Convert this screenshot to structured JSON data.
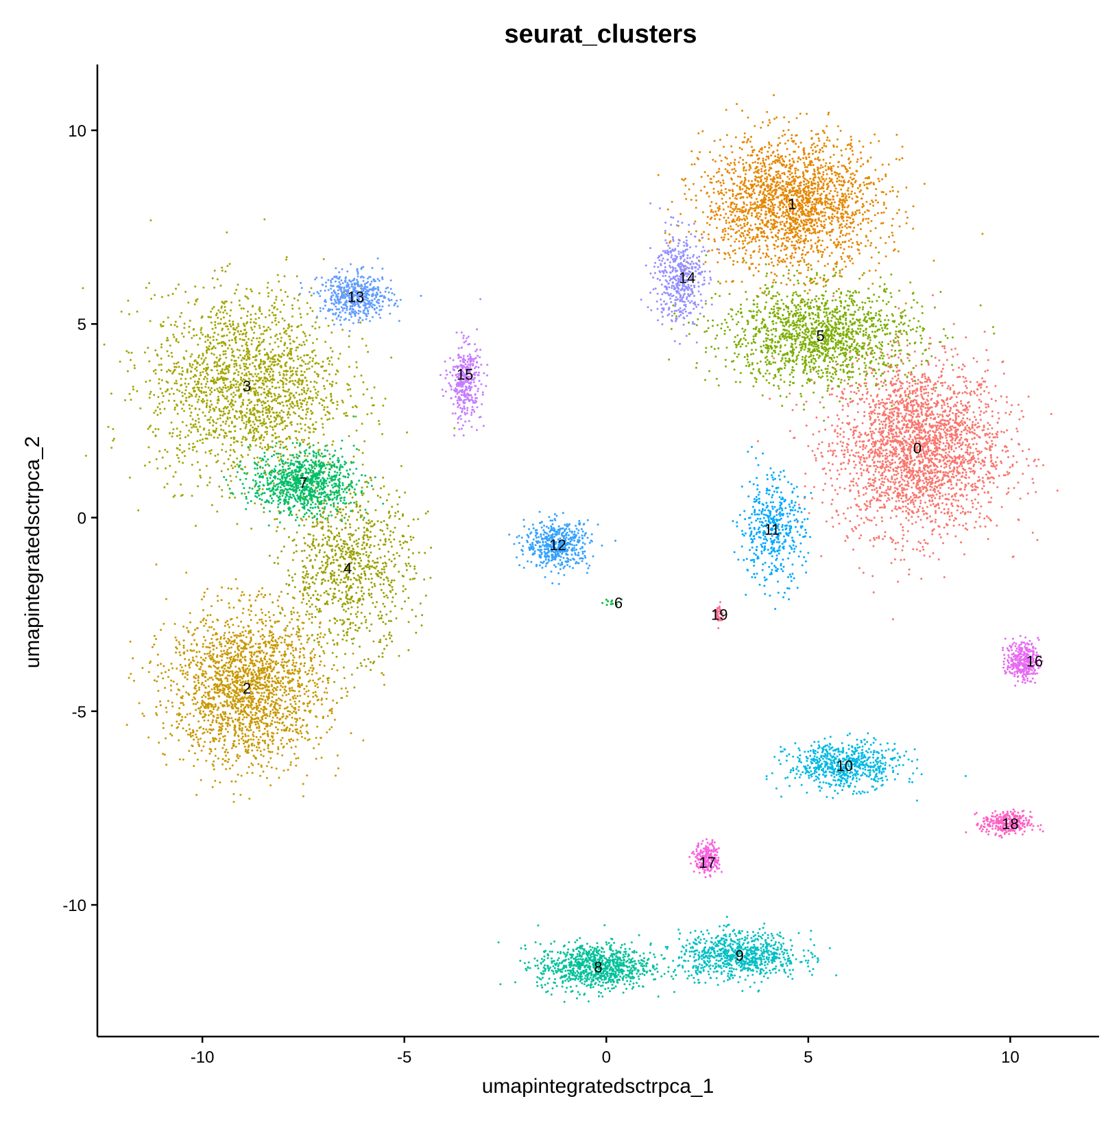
{
  "chart_data": {
    "type": "scatter",
    "title": "seurat_clusters",
    "xlabel": "umapintegratedsctrpca_1",
    "ylabel": "umapintegratedsctrpca_2",
    "xlim": [
      -12.6,
      12.2
    ],
    "ylim": [
      -13.4,
      11.7
    ],
    "x_ticks": [
      -10,
      -5,
      0,
      5,
      10
    ],
    "y_ticks": [
      -10,
      -5,
      0,
      5,
      10
    ],
    "x_tick_labels": [
      "-10",
      "-5",
      "0",
      "5",
      "10"
    ],
    "y_tick_labels": [
      "-10",
      "-5",
      "0",
      "5",
      "10"
    ],
    "grid": false,
    "legend": "none",
    "point_size": "small",
    "series": [
      {
        "name": "0",
        "color": "#F8766D",
        "center": [
          7.7,
          1.8
        ],
        "spread": [
          2.1,
          2.2
        ],
        "n": 2600
      },
      {
        "name": "1",
        "color": "#E58700",
        "center": [
          4.6,
          8.1
        ],
        "spread": [
          2.2,
          1.7
        ],
        "n": 2100
      },
      {
        "name": "2",
        "color": "#C99800",
        "center": [
          -8.9,
          -4.4
        ],
        "spread": [
          1.9,
          2.0
        ],
        "n": 2000
      },
      {
        "name": "3",
        "color": "#A3A500",
        "center": [
          -8.9,
          3.4
        ],
        "spread": [
          2.4,
          2.4
        ],
        "n": 1900
      },
      {
        "name": "4",
        "color": "#9AA000",
        "center": [
          -6.4,
          -1.3
        ],
        "spread": [
          1.6,
          2.1
        ],
        "n": 900
      },
      {
        "name": "5",
        "color": "#7CAE00",
        "center": [
          5.3,
          4.7
        ],
        "spread": [
          2.4,
          1.3
        ],
        "n": 1500
      },
      {
        "name": "6",
        "color": "#00BA38",
        "center": [
          0.1,
          -2.2
        ],
        "spread": [
          0.2,
          0.2
        ],
        "n": 10
      },
      {
        "name": "7",
        "color": "#00BE67",
        "center": [
          -7.5,
          0.9
        ],
        "spread": [
          1.3,
          0.8
        ],
        "n": 900
      },
      {
        "name": "8",
        "color": "#00C19A",
        "center": [
          -0.3,
          -11.6
        ],
        "spread": [
          1.4,
          0.6
        ],
        "n": 900
      },
      {
        "name": "9",
        "color": "#00BFC4",
        "center": [
          3.3,
          -11.3
        ],
        "spread": [
          1.5,
          0.6
        ],
        "n": 800
      },
      {
        "name": "10",
        "color": "#00B9E3",
        "center": [
          5.9,
          -6.4
        ],
        "spread": [
          1.4,
          0.6
        ],
        "n": 650
      },
      {
        "name": "11",
        "color": "#00A9FF",
        "center": [
          4.1,
          -0.3
        ],
        "spread": [
          0.8,
          1.4
        ],
        "n": 450
      },
      {
        "name": "12",
        "color": "#35A2FF",
        "center": [
          -1.2,
          -0.7
        ],
        "spread": [
          0.8,
          0.6
        ],
        "n": 500
      },
      {
        "name": "13",
        "color": "#619CFF",
        "center": [
          -6.2,
          5.7
        ],
        "spread": [
          0.9,
          0.6
        ],
        "n": 500
      },
      {
        "name": "14",
        "color": "#9590FF",
        "center": [
          1.8,
          6.2
        ],
        "spread": [
          0.6,
          1.2
        ],
        "n": 450
      },
      {
        "name": "15",
        "color": "#C77CFF",
        "center": [
          -3.5,
          3.5
        ],
        "spread": [
          0.4,
          1.0
        ],
        "n": 350
      },
      {
        "name": "16",
        "color": "#E76BF3",
        "center": [
          10.3,
          -3.7
        ],
        "spread": [
          0.4,
          0.5
        ],
        "n": 330
      },
      {
        "name": "17",
        "color": "#F863DF",
        "center": [
          2.5,
          -8.8
        ],
        "spread": [
          0.3,
          0.4
        ],
        "n": 230
      },
      {
        "name": "18",
        "color": "#FF61C3",
        "center": [
          9.9,
          -7.9
        ],
        "spread": [
          0.6,
          0.3
        ],
        "n": 300
      },
      {
        "name": "19",
        "color": "#FF6C91",
        "center": [
          2.8,
          -2.5
        ],
        "spread": [
          0.1,
          0.3
        ],
        "n": 40
      }
    ],
    "cluster_labels": [
      {
        "text": "0",
        "x": 7.7,
        "y": 1.8
      },
      {
        "text": "1",
        "x": 4.6,
        "y": 8.1
      },
      {
        "text": "2",
        "x": -8.9,
        "y": -4.4
      },
      {
        "text": "3",
        "x": -8.9,
        "y": 3.4
      },
      {
        "text": "4",
        "x": -6.4,
        "y": -1.3
      },
      {
        "text": "5",
        "x": 5.3,
        "y": 4.7
      },
      {
        "text": "6",
        "x": 0.3,
        "y": -2.2
      },
      {
        "text": "7",
        "x": -7.5,
        "y": 0.9
      },
      {
        "text": "8",
        "x": -0.2,
        "y": -11.6
      },
      {
        "text": "9",
        "x": 3.3,
        "y": -11.3
      },
      {
        "text": "10",
        "x": 5.9,
        "y": -6.4
      },
      {
        "text": "11",
        "x": 4.1,
        "y": -0.3
      },
      {
        "text": "12",
        "x": -1.2,
        "y": -0.7
      },
      {
        "text": "13",
        "x": -6.2,
        "y": 5.7
      },
      {
        "text": "14",
        "x": 2.0,
        "y": 6.2
      },
      {
        "text": "15",
        "x": -3.5,
        "y": 3.7
      },
      {
        "text": "16",
        "x": 10.6,
        "y": -3.7
      },
      {
        "text": "17",
        "x": 2.5,
        "y": -8.9
      },
      {
        "text": "18",
        "x": 10.0,
        "y": -7.9
      },
      {
        "text": "19",
        "x": 2.8,
        "y": -2.5
      }
    ]
  }
}
